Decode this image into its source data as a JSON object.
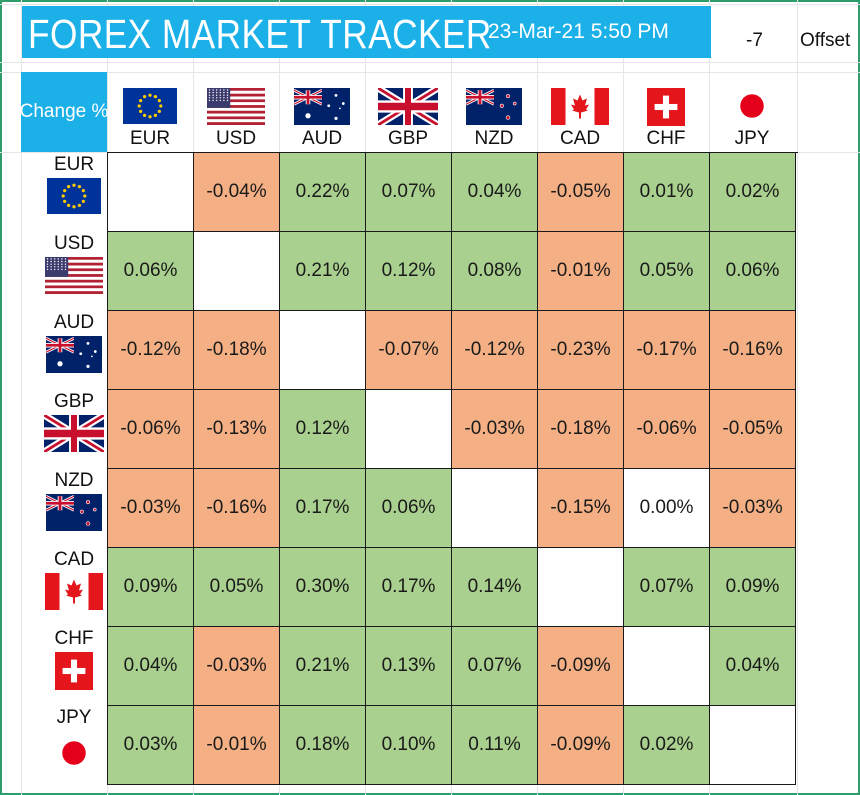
{
  "header": {
    "title": "FOREX MARKET TRACKER",
    "datetime": "23-Mar-21 5:50 PM",
    "offset_value": "-7",
    "offset_label": "Offset",
    "corner_label": "Change %"
  },
  "currencies": [
    {
      "code": "EUR",
      "flag": "eu-flag-icon"
    },
    {
      "code": "USD",
      "flag": "us-flag-icon"
    },
    {
      "code": "AUD",
      "flag": "australia-flag-icon"
    },
    {
      "code": "GBP",
      "flag": "uk-flag-icon"
    },
    {
      "code": "NZD",
      "flag": "new-zealand-flag-icon"
    },
    {
      "code": "CAD",
      "flag": "canada-flag-icon"
    },
    {
      "code": "CHF",
      "flag": "switzerland-flag-icon"
    },
    {
      "code": "JPY",
      "flag": "japan-flag-icon"
    }
  ],
  "matrix": [
    [
      "",
      "-0.04%",
      "0.22%",
      "0.07%",
      "0.04%",
      "-0.05%",
      "0.01%",
      "0.02%"
    ],
    [
      "0.06%",
      "",
      "0.21%",
      "0.12%",
      "0.08%",
      "-0.01%",
      "0.05%",
      "0.06%"
    ],
    [
      "-0.12%",
      "-0.18%",
      "",
      "-0.07%",
      "-0.12%",
      "-0.23%",
      "-0.17%",
      "-0.16%"
    ],
    [
      "-0.06%",
      "-0.13%",
      "0.12%",
      "",
      "-0.03%",
      "-0.18%",
      "-0.06%",
      "-0.05%"
    ],
    [
      "-0.03%",
      "-0.16%",
      "0.17%",
      "0.06%",
      "",
      "-0.15%",
      "0.00%",
      "-0.03%"
    ],
    [
      "0.09%",
      "0.05%",
      "0.30%",
      "0.17%",
      "0.14%",
      "",
      "0.07%",
      "0.09%"
    ],
    [
      "0.04%",
      "-0.03%",
      "0.21%",
      "0.13%",
      "0.07%",
      "-0.09%",
      "",
      "0.04%"
    ],
    [
      "0.03%",
      "-0.01%",
      "0.18%",
      "0.10%",
      "0.11%",
      "-0.09%",
      "0.02%",
      ""
    ]
  ],
  "colors": {
    "accent": "#1bb0e8",
    "positive": "#a9d08e",
    "negative": "#f4b084",
    "neutral": "#ffffff",
    "frame": "#2e9c6b"
  }
}
